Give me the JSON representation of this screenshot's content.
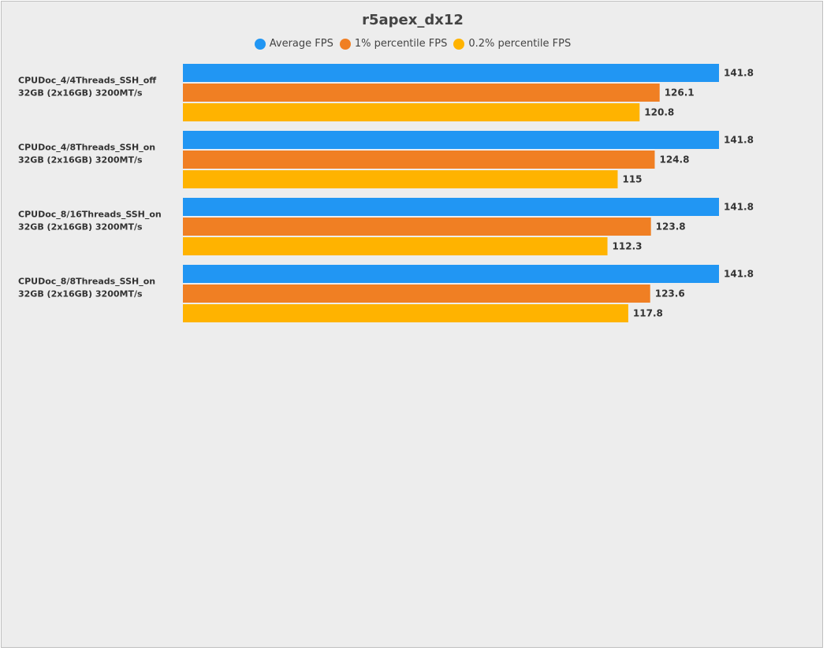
{
  "chart_data": {
    "type": "bar",
    "orientation": "horizontal",
    "title": "r5apex_dx12",
    "xlabel": "",
    "ylabel": "",
    "xlim": [
      0,
      141.8
    ],
    "legend_position": "top",
    "categories": [
      [
        "CPUDoc_4/4Threads_SSH_off",
        "32GB (2x16GB) 3200MT/s"
      ],
      [
        "CPUDoc_4/8Threads_SSH_on",
        "32GB (2x16GB) 3200MT/s"
      ],
      [
        "CPUDoc_8/16Threads_SSH_on",
        "32GB (2x16GB) 3200MT/s"
      ],
      [
        "CPUDoc_8/8Threads_SSH_on",
        "32GB (2x16GB) 3200MT/s"
      ]
    ],
    "series": [
      {
        "name": "Average FPS",
        "color": "#2196f3",
        "values": [
          141.8,
          141.8,
          141.8,
          141.8
        ]
      },
      {
        "name": "1% percentile FPS",
        "color": "#f07f23",
        "values": [
          126.1,
          124.8,
          123.8,
          123.6
        ]
      },
      {
        "name": "0.2% percentile FPS",
        "color": "#ffb300",
        "values": [
          120.8,
          115,
          112.3,
          117.8
        ]
      }
    ]
  }
}
